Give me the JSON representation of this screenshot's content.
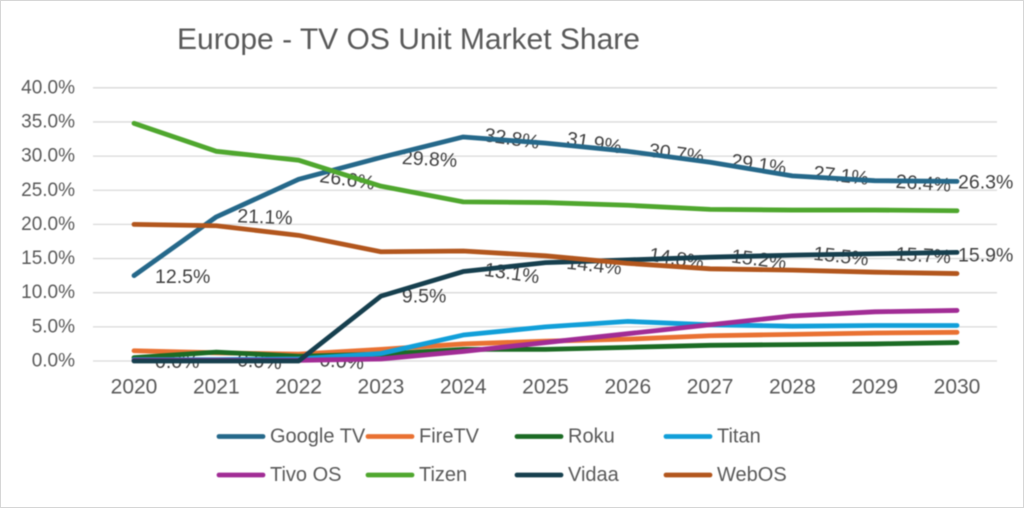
{
  "chart_data": {
    "type": "line",
    "title": "Europe - TV OS Unit Market Share",
    "x": [
      "2020",
      "2021",
      "2022",
      "2023",
      "2024",
      "2025",
      "2026",
      "2027",
      "2028",
      "2029",
      "2030"
    ],
    "ylabel": "",
    "xlabel": "",
    "ylim": [
      0,
      40
    ],
    "y_ticks": [
      "0.0%",
      "5.0%",
      "10.0%",
      "15.0%",
      "20.0%",
      "25.0%",
      "30.0%",
      "35.0%",
      "40.0%"
    ],
    "grid": "horizontal",
    "legend_position": "bottom",
    "colors": {
      "grid": "#d9d9d9",
      "axis_text": "#595959",
      "title_text": "#595959",
      "data_label_text": "#404040"
    },
    "series": [
      {
        "name": "Google TV",
        "color": "#25688a",
        "values": [
          12.5,
          21.1,
          26.6,
          29.8,
          32.8,
          31.9,
          30.7,
          29.1,
          27.1,
          26.4,
          26.3
        ],
        "labels": [
          "12.5%",
          "21.1%",
          "26.6%",
          "29.8%",
          "32.8%",
          "31.9%",
          "30.7%",
          "29.1%",
          "27.1%",
          "26.4%",
          "26.3%"
        ],
        "label_rotations": [
          0,
          2,
          8,
          3,
          8,
          9,
          7,
          8,
          6,
          4,
          0
        ],
        "label_dy": [
          1.5,
          0.5,
          0.5,
          2,
          2,
          0,
          2.5,
          2.5,
          0,
          3,
          1
        ]
      },
      {
        "name": "FireTV",
        "color": "#e97132",
        "values": [
          1.5,
          1.2,
          1.0,
          1.7,
          2.5,
          2.9,
          3.2,
          3.7,
          3.9,
          4.1,
          4.2
        ]
      },
      {
        "name": "Roku",
        "color": "#1b6b24",
        "values": [
          0.5,
          1.3,
          0.7,
          1.0,
          1.7,
          1.7,
          2.0,
          2.3,
          2.4,
          2.5,
          2.7
        ]
      },
      {
        "name": "Titan",
        "color": "#119fd9",
        "values": [
          0.2,
          0.2,
          0.3,
          1.1,
          3.8,
          5.0,
          5.8,
          5.3,
          5.1,
          5.2,
          5.2
        ]
      },
      {
        "name": "Tivo OS",
        "color": "#a12c95",
        "values": [
          0.1,
          0.1,
          0.1,
          0.3,
          1.4,
          2.7,
          4.0,
          5.3,
          6.6,
          7.2,
          7.4
        ]
      },
      {
        "name": "Tizen",
        "color": "#4fa72e",
        "values": [
          34.8,
          30.7,
          29.4,
          25.6,
          23.3,
          23.2,
          22.8,
          22.2,
          22.1,
          22.1,
          22.0
        ]
      },
      {
        "name": "Vidaa",
        "color": "#163f4e",
        "values": [
          0.0,
          0.0,
          0.0,
          9.5,
          13.1,
          14.4,
          14.8,
          15.2,
          15.5,
          15.7,
          15.9
        ],
        "labels": [
          "0.0%",
          "0.0%",
          "0.0%",
          "9.5%",
          "13.1%",
          "14.4%",
          "14.8%",
          "15.2%",
          "15.5%",
          "15.7%",
          "15.9%"
        ],
        "label_rotations": [
          0,
          4,
          4,
          0,
          8,
          6,
          9,
          7,
          6,
          3,
          0
        ],
        "label_dy": [
          1,
          1,
          1,
          0.5,
          2,
          3,
          -1,
          2.5,
          1.5,
          2,
          3
        ]
      },
      {
        "name": "WebOS",
        "color": "#b2561d",
        "values": [
          20.0,
          19.8,
          18.4,
          16.0,
          16.1,
          15.4,
          14.3,
          13.5,
          13.3,
          13.0,
          12.8
        ]
      }
    ],
    "legend": {
      "rows": [
        [
          "Google TV",
          "FireTV",
          "Roku",
          "Titan"
        ],
        [
          "Tivo OS",
          "Tizen",
          "Vidaa",
          "WebOS"
        ]
      ]
    }
  }
}
